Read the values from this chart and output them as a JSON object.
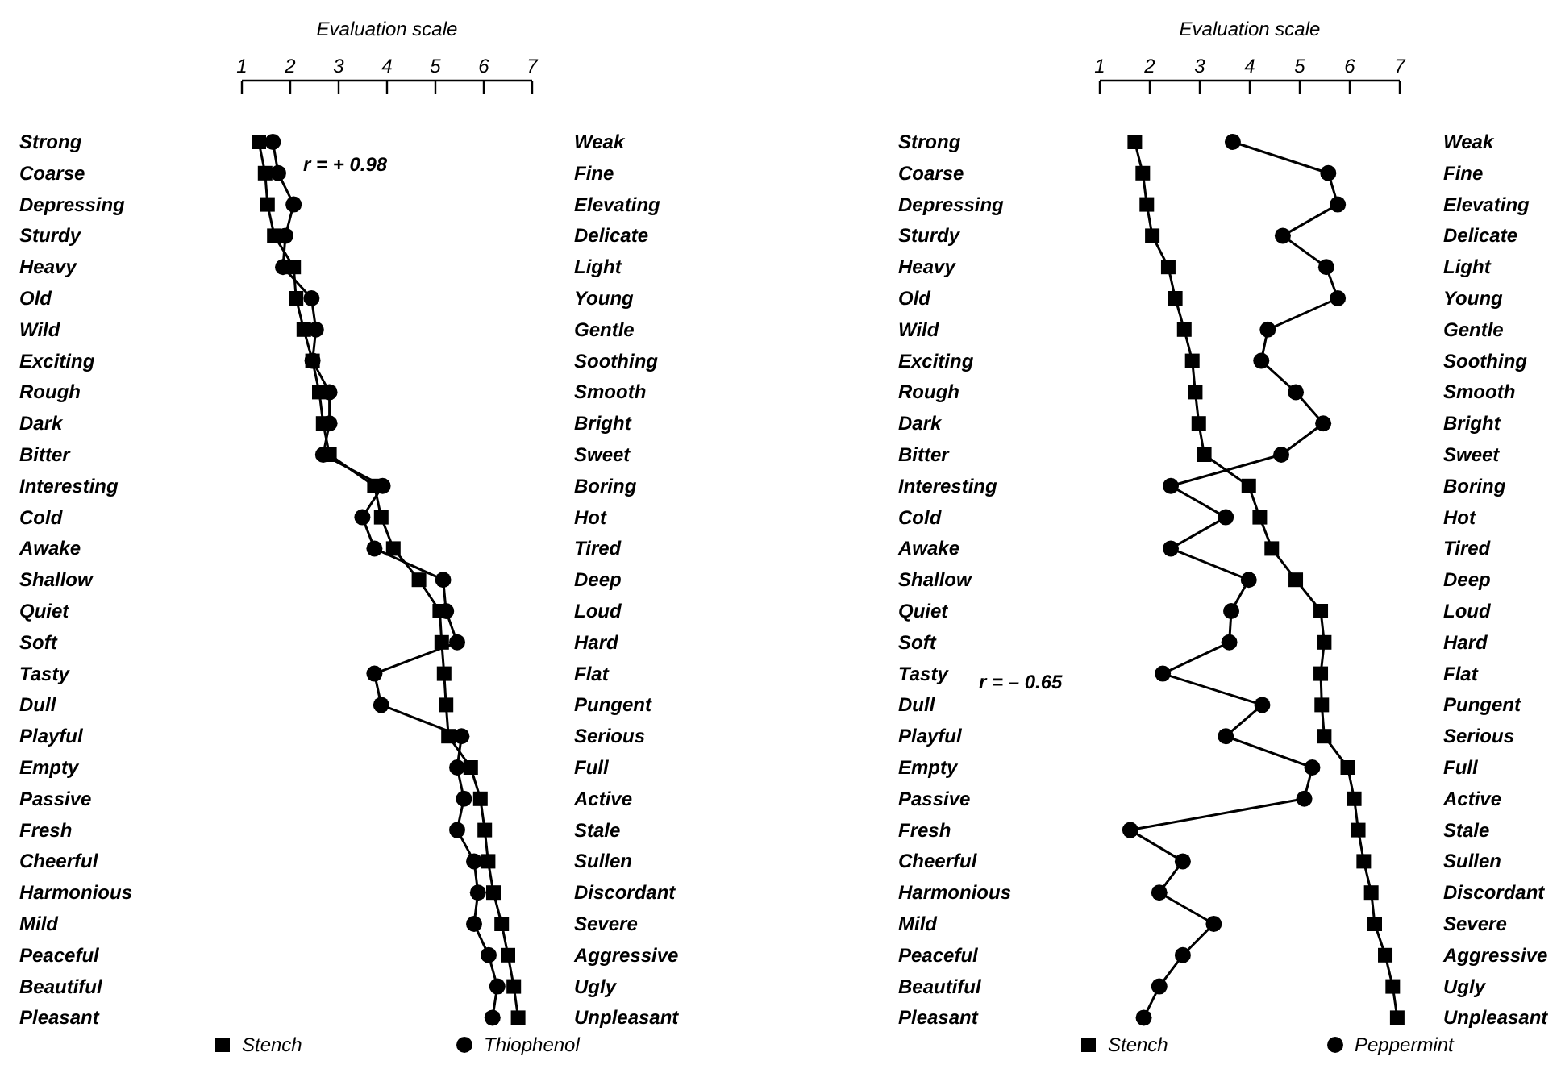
{
  "chart_data": [
    {
      "type": "line",
      "orientation": "horizontal",
      "xlabel": "Evaluation scale",
      "xlim": [
        1,
        7
      ],
      "xticks": [
        1,
        2,
        3,
        4,
        5,
        6,
        7
      ],
      "grid": false,
      "legend": "bottom",
      "line_style": "solid",
      "annotations": [
        "r = + 0.98"
      ],
      "categories": [
        "Strong",
        "Coarse",
        "Depressing",
        "Sturdy",
        "Heavy",
        "Old",
        "Wild",
        "Exciting",
        "Rough",
        "Dark",
        "Bitter",
        "Interesting",
        "Cold",
        "Awake",
        "Shallow",
        "Quiet",
        "Soft",
        "Tasty",
        "Dull",
        "Playful",
        "Empty",
        "Passive",
        "Fresh",
        "Cheerful",
        "Harmonious",
        "Mild",
        "Peaceful",
        "Beautiful",
        "Pleasant"
      ],
      "y2_categories": [
        "Weak",
        "Fine",
        "Elevating",
        "Delicate",
        "Light",
        "Young",
        "Gentle",
        "Soothing",
        "Smooth",
        "Bright",
        "Sweet",
        "Boring",
        "Hot",
        "Tired",
        "Deep",
        "Loud",
        "Hard",
        "Flat",
        "Pungent",
        "Serious",
        "Full",
        "Active",
        "Stale",
        "Sullen",
        "Discordant",
        "Severe",
        "Aggressive",
        "Ugly",
        "Unpleasant"
      ],
      "series": [
        {
          "name": "Stench",
          "color": "#000000",
          "marker": "square",
          "values": [
            1.35,
            1.48,
            1.53,
            1.67,
            2.07,
            2.12,
            2.28,
            2.46,
            2.6,
            2.68,
            2.81,
            3.74,
            3.88,
            4.13,
            4.66,
            5.09,
            5.13,
            5.18,
            5.22,
            5.27,
            5.73,
            5.93,
            6.02,
            6.09,
            6.2,
            6.37,
            6.5,
            6.62,
            6.71
          ]
        },
        {
          "name": "Thiophenol",
          "color": "#000000",
          "marker": "circle",
          "values": [
            1.64,
            1.75,
            2.07,
            1.9,
            1.85,
            2.44,
            2.53,
            2.46,
            2.81,
            2.81,
            2.68,
            3.91,
            3.49,
            3.74,
            5.16,
            5.22,
            5.45,
            3.74,
            3.88,
            5.54,
            5.45,
            5.59,
            5.45,
            5.8,
            5.88,
            5.8,
            6.1,
            6.28,
            6.18
          ]
        }
      ]
    },
    {
      "type": "line",
      "orientation": "horizontal",
      "xlabel": "Evaluation scale",
      "xlim": [
        1,
        7
      ],
      "xticks": [
        1,
        2,
        3,
        4,
        5,
        6,
        7
      ],
      "grid": false,
      "legend": "bottom",
      "line_style": "solid",
      "annotations": [
        "r = – 0.65"
      ],
      "categories": [
        "Strong",
        "Coarse",
        "Depressing",
        "Sturdy",
        "Heavy",
        "Old",
        "Wild",
        "Exciting",
        "Rough",
        "Dark",
        "Bitter",
        "Interesting",
        "Cold",
        "Awake",
        "Shallow",
        "Quiet",
        "Soft",
        "Tasty",
        "Dull",
        "Playful",
        "Empty",
        "Passive",
        "Fresh",
        "Cheerful",
        "Harmonious",
        "Mild",
        "Peaceful",
        "Beautiful",
        "Pleasant"
      ],
      "y2_categories": [
        "Weak",
        "Fine",
        "Elevating",
        "Delicate",
        "Light",
        "Young",
        "Gentle",
        "Soothing",
        "Smooth",
        "Bright",
        "Sweet",
        "Boring",
        "Hot",
        "Tired",
        "Deep",
        "Loud",
        "Hard",
        "Flat",
        "Pungent",
        "Serious",
        "Full",
        "Active",
        "Stale",
        "Sullen",
        "Discordant",
        "Severe",
        "Aggressive",
        "Ugly",
        "Unpleasant"
      ],
      "series": [
        {
          "name": "Stench",
          "color": "#000000",
          "marker": "square",
          "values": [
            1.7,
            1.86,
            1.94,
            2.05,
            2.37,
            2.51,
            2.69,
            2.85,
            2.91,
            2.98,
            3.09,
            3.98,
            4.2,
            4.44,
            4.92,
            5.42,
            5.49,
            5.42,
            5.44,
            5.49,
            5.96,
            6.09,
            6.17,
            6.28,
            6.43,
            6.5,
            6.71,
            6.86,
            6.95
          ]
        },
        {
          "name": "Peppermint",
          "color": "#000000",
          "marker": "circle",
          "values": [
            3.66,
            5.57,
            5.76,
            4.66,
            5.53,
            5.76,
            4.36,
            4.23,
            4.92,
            5.47,
            4.63,
            2.42,
            3.52,
            2.42,
            3.98,
            3.63,
            3.59,
            2.26,
            4.25,
            3.52,
            5.25,
            5.09,
            1.61,
            2.66,
            2.19,
            3.28,
            2.66,
            2.19,
            1.88
          ]
        }
      ]
    }
  ]
}
